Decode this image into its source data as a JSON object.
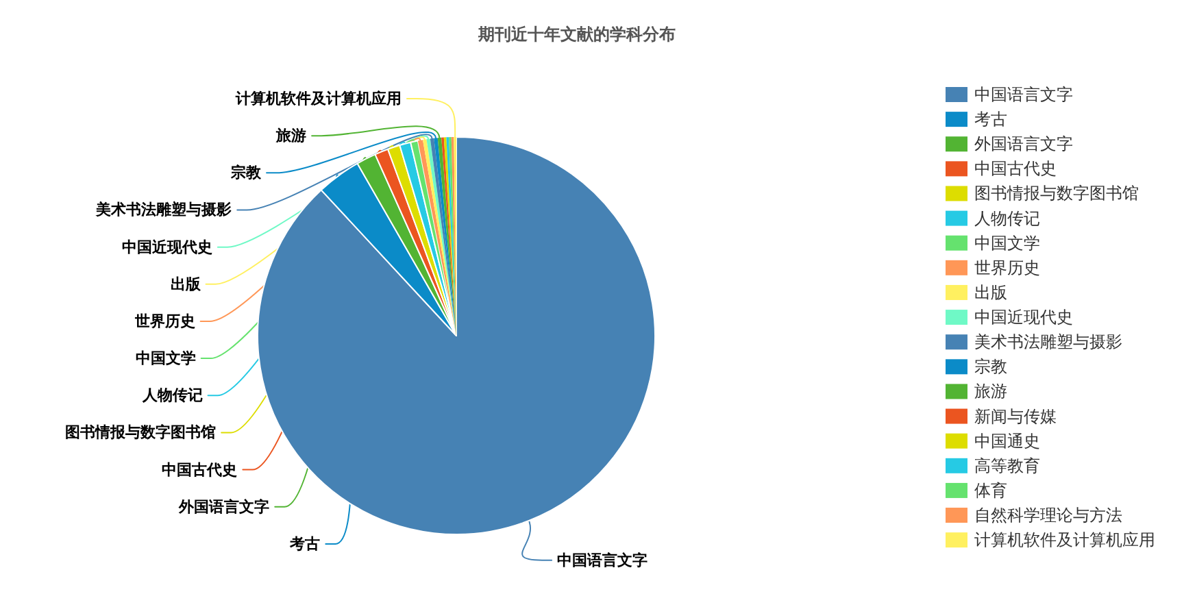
{
  "chart_data": {
    "type": "pie",
    "title": "期刊近十年文献的学科分布",
    "categories": [
      "中国语言文字",
      "考古",
      "外国语言文字",
      "中国古代史",
      "图书情报与数字图书馆",
      "人物传记",
      "中国文学",
      "世界历史",
      "出版",
      "中国近现代史",
      "美术书法雕塑与摄影",
      "宗教",
      "旅游",
      "新闻与传媒",
      "中国通史",
      "高等教育",
      "体育",
      "自然科学理论与方法",
      "计算机软件及计算机应用"
    ],
    "values": [
      88.1,
      3.6,
      1.6,
      1.1,
      1.0,
      0.9,
      0.6,
      0.4,
      0.3,
      0.3,
      0.3,
      0.3,
      0.3,
      0.2,
      0.2,
      0.2,
      0.2,
      0.2,
      0.2
    ],
    "value_labels": [
      "中国语言文字",
      "考古",
      "外国语言文字",
      "中国古代史",
      "图书情报与数字图书馆",
      "人物传记",
      "中国文学",
      "世界历史",
      "出版",
      "中国近现代史",
      "美术书法雕塑与摄影",
      "宗教",
      "旅游",
      null,
      null,
      null,
      null,
      null,
      "计算机软件及计算机应用"
    ],
    "colors": [
      "#4682b4",
      "#0b8bc8",
      "#52b433",
      "#eb5520",
      "#dddd00",
      "#26cae4",
      "#65e26e",
      "#ff9757",
      "#fff060",
      "#6ff9c6",
      "#4682b4",
      "#0b8bc8",
      "#52b433",
      "#eb5520",
      "#dddd00",
      "#26cae4",
      "#65e26e",
      "#ff9757",
      "#fff060"
    ],
    "legend": "right"
  }
}
